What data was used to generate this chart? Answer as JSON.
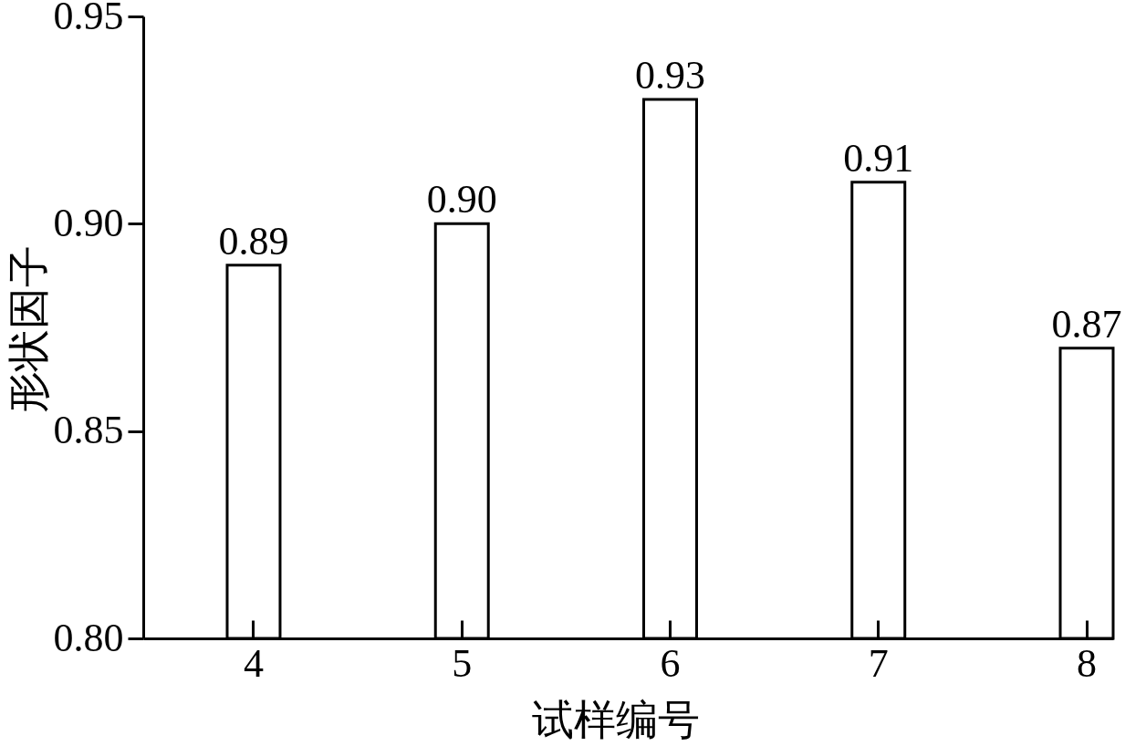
{
  "chart_data": {
    "type": "bar",
    "xlabel": "试样编号",
    "ylabel": "形状因子",
    "categories": [
      "4",
      "5",
      "6",
      "7",
      "8"
    ],
    "values": [
      0.89,
      0.9,
      0.93,
      0.91,
      0.87
    ],
    "value_labels": [
      "0.89",
      "0.90",
      "0.93",
      "0.91",
      "0.87"
    ],
    "color": "#ffffff",
    "ylim": [
      0.8,
      0.95
    ],
    "yticks": [
      {
        "value": 0.8,
        "label": "0.80"
      },
      0.85,
      {
        "value": 0.9,
        "label": "0.90"
      },
      0.95
    ]
  }
}
